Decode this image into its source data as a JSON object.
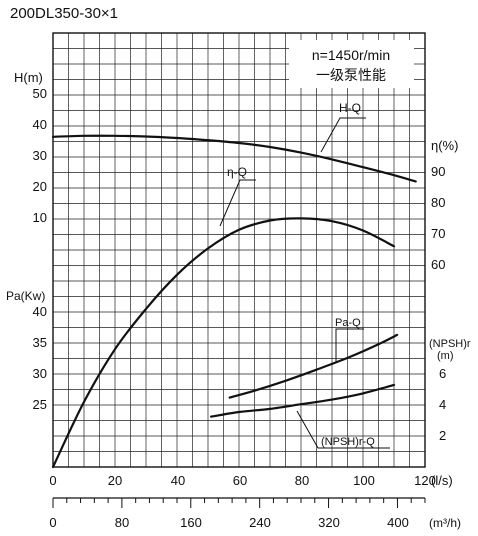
{
  "title": "200DL350-30×1",
  "info": {
    "speed": "n=1450r/min",
    "stage_note": "一级泵性能"
  },
  "axis_labels": {
    "h": "H(m)",
    "pa": "Pa(Kw)",
    "eta": "η(%)",
    "npsh_line1": "(NPSH)r",
    "npsh_line2": "(m)",
    "q_ls": "(l/s)",
    "q_m3h": "(m³/h)"
  },
  "curve_labels": {
    "hq": "H-Q",
    "etaq": "η-Q",
    "paq": "Pa-Q",
    "npshq": "(NPSH)r-Q"
  },
  "ticks": {
    "h": [
      "50",
      "40",
      "30",
      "20",
      "10"
    ],
    "pa": [
      "40",
      "35",
      "30",
      "25"
    ],
    "eta": [
      "90",
      "80",
      "70",
      "60"
    ],
    "npsh": [
      "6",
      "4",
      "2"
    ],
    "q_ls": [
      "0",
      "20",
      "40",
      "60",
      "80",
      "100",
      "120"
    ],
    "q_m3h": [
      "0",
      "80",
      "160",
      "240",
      "320",
      "400"
    ]
  },
  "chart_data": {
    "type": "line",
    "title": "200DL350-30×1",
    "note": [
      "n=1450r/min",
      "一级泵性能"
    ],
    "x_axes": [
      {
        "label": "(l/s)",
        "range": [
          0,
          120
        ],
        "ticks": [
          0,
          20,
          40,
          60,
          80,
          100,
          120
        ]
      },
      {
        "label": "(m³/h)",
        "range": [
          0,
          432
        ],
        "ticks": [
          0,
          80,
          160,
          240,
          320,
          400
        ]
      }
    ],
    "y_axes": [
      {
        "label": "H(m)",
        "ticks": [
          10,
          20,
          30,
          40,
          50
        ]
      },
      {
        "label": "Pa(Kw)",
        "ticks": [
          25,
          30,
          35,
          40
        ]
      },
      {
        "label": "η(%)",
        "ticks": [
          60,
          70,
          80,
          90
        ]
      },
      {
        "label": "(NPSH)r (m)",
        "ticks": [
          2,
          4,
          6
        ]
      }
    ],
    "grid": true,
    "series": [
      {
        "name": "H-Q",
        "axis": "H(m)",
        "x": [
          0,
          10,
          20,
          30,
          40,
          50,
          60,
          70,
          80,
          90,
          100,
          110,
          117
        ],
        "y": [
          36.2,
          36.5,
          36.5,
          36.3,
          35.8,
          35.1,
          34.2,
          32.9,
          31.1,
          28.9,
          26.4,
          23.8,
          21.8
        ]
      },
      {
        "name": "η-Q",
        "axis": "η(%)",
        "x": [
          0,
          10,
          20,
          30,
          40,
          50,
          60,
          70,
          80,
          90,
          100,
          110
        ],
        "y": [
          0,
          21,
          38,
          51,
          62,
          70.5,
          76.5,
          79.5,
          80.2,
          79.3,
          76.3,
          71.2
        ]
      },
      {
        "name": "Pa-Q",
        "axis": "Pa(Kw)",
        "x": [
          57,
          65,
          75,
          85,
          95,
          105,
          111
        ],
        "y": [
          26.2,
          27.3,
          28.9,
          30.7,
          32.6,
          34.8,
          36.3
        ]
      },
      {
        "name": "(NPSH)r-Q",
        "axis": "(NPSH)r (m)",
        "x": [
          51,
          60,
          70,
          80,
          90,
          100,
          110
        ],
        "y": [
          3.25,
          3.55,
          3.75,
          4.05,
          4.35,
          4.75,
          5.3
        ]
      }
    ]
  }
}
